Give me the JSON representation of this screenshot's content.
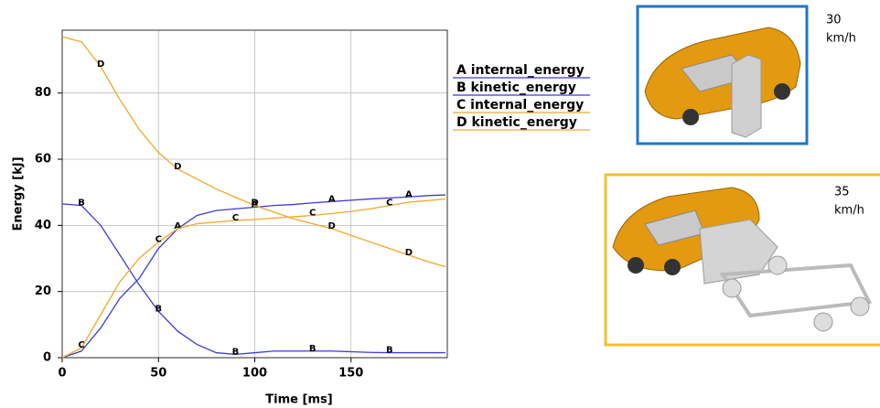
{
  "chart_data": {
    "type": "line",
    "xlabel": "Time [ms]",
    "ylabel": "Energy [kJ]",
    "x": [
      0,
      10,
      20,
      30,
      40,
      50,
      60,
      70,
      80,
      90,
      100,
      110,
      120,
      130,
      140,
      150,
      160,
      170,
      180,
      190,
      199
    ],
    "series": [
      {
        "name": "A internal_energy",
        "marker": "A",
        "color": "#3b3bdc",
        "values": [
          0,
          2,
          9,
          18,
          24,
          33,
          39,
          43,
          44.5,
          45,
          45.5,
          46,
          46.3,
          46.8,
          47.2,
          47.6,
          48,
          48.3,
          48.6,
          49,
          49.2
        ]
      },
      {
        "name": "B kinetic_energy",
        "marker": "B",
        "color": "#3b3bdc",
        "values": [
          46.5,
          46,
          40,
          31,
          22,
          14,
          8,
          4,
          1.5,
          1,
          1.5,
          2,
          2,
          2,
          2,
          1.8,
          1.6,
          1.5,
          1.5,
          1.5,
          1.5
        ]
      },
      {
        "name": "C internal_energy",
        "marker": "C",
        "color": "#f5a623",
        "values": [
          0,
          3,
          13,
          23,
          30,
          35,
          39,
          40.5,
          41,
          41.5,
          41.8,
          42.2,
          42.6,
          43,
          43.6,
          44.2,
          45,
          46,
          47,
          47.5,
          48
        ]
      },
      {
        "name": "D kinetic_energy",
        "marker": "D",
        "color": "#f5a623",
        "values": [
          97,
          95.5,
          88,
          78,
          69,
          62,
          57,
          54,
          51,
          48.5,
          46,
          44,
          42,
          40.5,
          39,
          37,
          35,
          33,
          31,
          29,
          27.5
        ]
      }
    ],
    "xlim": [
      0,
      200
    ],
    "ylim": [
      0,
      99
    ],
    "xticks": [
      0,
      50,
      100,
      150
    ],
    "yticks": [
      0,
      20,
      40,
      60,
      80
    ],
    "grid": true
  },
  "panels": [
    {
      "speed": "30",
      "unit": "km/h",
      "border": "#1f77c4"
    },
    {
      "speed": "35",
      "unit": "km/h",
      "border": "#f2c12e"
    }
  ]
}
